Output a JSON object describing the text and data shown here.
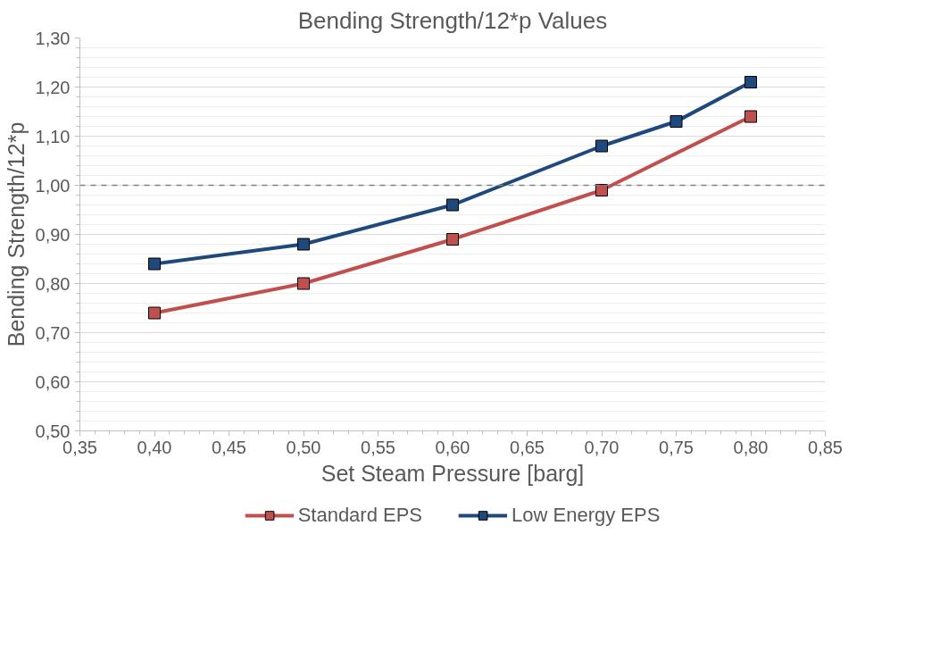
{
  "chart_data": {
    "type": "line",
    "title": "Bending Strength/12*p Values",
    "xlabel": "Set Steam Pressure [barg]",
    "ylabel": "Bending Strength/12*p",
    "series": [
      {
        "name": "Standard EPS",
        "color": "#c0504d",
        "x": [
          0.4,
          0.5,
          0.6,
          0.7,
          0.8
        ],
        "values": [
          0.74,
          0.8,
          0.89,
          0.99,
          1.14
        ]
      },
      {
        "name": "Low Energy EPS",
        "color": "#1f497d",
        "x": [
          0.4,
          0.5,
          0.6,
          0.7,
          0.75,
          0.8
        ],
        "values": [
          0.84,
          0.88,
          0.96,
          1.08,
          1.13,
          1.21
        ]
      }
    ],
    "xlim": [
      0.35,
      0.85
    ],
    "xticks": [
      {
        "value": 0.35,
        "label": "0,35"
      },
      {
        "value": 0.4,
        "label": "0,40"
      },
      {
        "value": 0.45,
        "label": "0,45"
      },
      {
        "value": 0.5,
        "label": "0,50"
      },
      {
        "value": 0.55,
        "label": "0,55"
      },
      {
        "value": 0.6,
        "label": "0,60"
      },
      {
        "value": 0.65,
        "label": "0,65"
      },
      {
        "value": 0.7,
        "label": "0,70"
      },
      {
        "value": 0.75,
        "label": "0,75"
      },
      {
        "value": 0.8,
        "label": "0,80"
      },
      {
        "value": 0.85,
        "label": "0,85"
      }
    ],
    "ylim": [
      0.5,
      1.3
    ],
    "yticks": [
      {
        "value": 0.5,
        "label": "0,50"
      },
      {
        "value": 0.6,
        "label": "0,60"
      },
      {
        "value": 0.7,
        "label": "0,70"
      },
      {
        "value": 0.8,
        "label": "0,80"
      },
      {
        "value": 0.9,
        "label": "0,90"
      },
      {
        "value": 1.0,
        "label": "1,00"
      },
      {
        "value": 1.1,
        "label": "1,10"
      },
      {
        "value": 1.2,
        "label": "1,20"
      },
      {
        "value": 1.3,
        "label": "1,30"
      }
    ],
    "ref_lines": [
      {
        "axis": "y",
        "value": 1.0,
        "color": "#808080",
        "line_style": "dashed"
      }
    ],
    "grid": "y",
    "legend": "bottom",
    "marker": "square",
    "line_style": "solid"
  }
}
